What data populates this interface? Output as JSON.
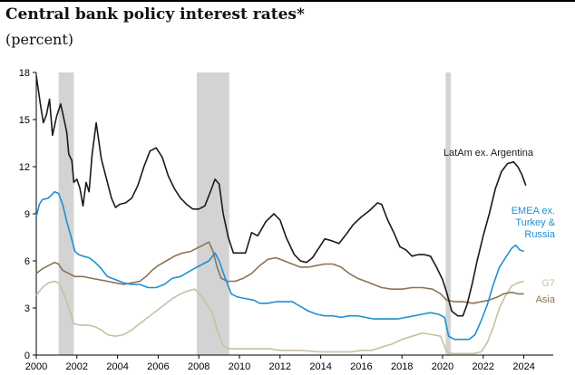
{
  "header": {
    "title": "Central bank policy interest rates*",
    "subtitle": "(percent)"
  },
  "chart_data": {
    "type": "line",
    "title": "Central bank policy interest rates*",
    "subtitle": "(percent)",
    "xlabel": "",
    "ylabel": "",
    "xlim": [
      2000,
      2024.2
    ],
    "ylim": [
      0,
      18
    ],
    "x_ticks": [
      "2000",
      "2002",
      "2004",
      "2006",
      "2008",
      "2010",
      "2012",
      "2014",
      "2016",
      "2018",
      "2020",
      "2022",
      "2024"
    ],
    "y_ticks": [
      "0",
      "3",
      "6",
      "9",
      "12",
      "15",
      "18"
    ],
    "grid": false,
    "shaded_periods": [
      [
        2001.1,
        2001.85
      ],
      [
        2007.9,
        2009.5
      ],
      [
        2020.15,
        2020.4
      ]
    ],
    "series": [
      {
        "name": "LatAm ex. Argentina",
        "label_lines": [
          "LatAm ex. Argentina"
        ],
        "color": "#1a1a1a",
        "points": [
          [
            2000,
            17.8
          ],
          [
            2000.2,
            16.0
          ],
          [
            2000.35,
            14.8
          ],
          [
            2000.5,
            15.3
          ],
          [
            2000.65,
            16.3
          ],
          [
            2000.8,
            14.0
          ],
          [
            2001.0,
            15.2
          ],
          [
            2001.2,
            16.0
          ],
          [
            2001.4,
            14.8
          ],
          [
            2001.5,
            14.2
          ],
          [
            2001.6,
            12.8
          ],
          [
            2001.75,
            12.4
          ],
          [
            2001.85,
            11.0
          ],
          [
            2002.0,
            11.2
          ],
          [
            2002.15,
            10.6
          ],
          [
            2002.3,
            9.5
          ],
          [
            2002.45,
            11.0
          ],
          [
            2002.6,
            10.4
          ],
          [
            2002.75,
            12.8
          ],
          [
            2002.95,
            14.8
          ],
          [
            2003.2,
            12.5
          ],
          [
            2003.5,
            11.0
          ],
          [
            2003.7,
            10.0
          ],
          [
            2003.9,
            9.4
          ],
          [
            2004.1,
            9.6
          ],
          [
            2004.4,
            9.7
          ],
          [
            2004.7,
            10.0
          ],
          [
            2005.0,
            10.8
          ],
          [
            2005.3,
            12.0
          ],
          [
            2005.6,
            13.0
          ],
          [
            2005.9,
            13.2
          ],
          [
            2006.2,
            12.6
          ],
          [
            2006.5,
            11.4
          ],
          [
            2006.8,
            10.6
          ],
          [
            2007.1,
            10.0
          ],
          [
            2007.4,
            9.6
          ],
          [
            2007.7,
            9.3
          ],
          [
            2008.0,
            9.3
          ],
          [
            2008.3,
            9.5
          ],
          [
            2008.6,
            10.5
          ],
          [
            2008.8,
            11.2
          ],
          [
            2009.0,
            10.9
          ],
          [
            2009.2,
            9.0
          ],
          [
            2009.45,
            7.5
          ],
          [
            2009.7,
            6.5
          ],
          [
            2010.0,
            6.5
          ],
          [
            2010.3,
            6.5
          ],
          [
            2010.6,
            7.8
          ],
          [
            2010.9,
            7.6
          ],
          [
            2011.3,
            8.5
          ],
          [
            2011.7,
            9.0
          ],
          [
            2012.0,
            8.6
          ],
          [
            2012.3,
            7.5
          ],
          [
            2012.7,
            6.4
          ],
          [
            2013.0,
            6.0
          ],
          [
            2013.3,
            5.9
          ],
          [
            2013.6,
            6.2
          ],
          [
            2013.9,
            6.8
          ],
          [
            2014.2,
            7.4
          ],
          [
            2014.5,
            7.3
          ],
          [
            2014.9,
            7.1
          ],
          [
            2015.2,
            7.6
          ],
          [
            2015.6,
            8.3
          ],
          [
            2016.0,
            8.8
          ],
          [
            2016.4,
            9.2
          ],
          [
            2016.8,
            9.7
          ],
          [
            2017.0,
            9.6
          ],
          [
            2017.3,
            8.6
          ],
          [
            2017.6,
            7.8
          ],
          [
            2017.9,
            6.9
          ],
          [
            2018.2,
            6.7
          ],
          [
            2018.5,
            6.3
          ],
          [
            2018.8,
            6.4
          ],
          [
            2019.1,
            6.4
          ],
          [
            2019.4,
            6.3
          ],
          [
            2019.7,
            5.6
          ],
          [
            2020.0,
            4.8
          ],
          [
            2020.2,
            4.0
          ],
          [
            2020.45,
            2.8
          ],
          [
            2020.75,
            2.5
          ],
          [
            2021.0,
            2.5
          ],
          [
            2021.2,
            3.2
          ],
          [
            2021.45,
            4.5
          ],
          [
            2021.7,
            6.0
          ],
          [
            2022.0,
            7.6
          ],
          [
            2022.3,
            9.0
          ],
          [
            2022.6,
            10.6
          ],
          [
            2022.9,
            11.7
          ],
          [
            2023.2,
            12.2
          ],
          [
            2023.5,
            12.3
          ],
          [
            2023.7,
            12.0
          ],
          [
            2023.9,
            11.5
          ],
          [
            2024.1,
            10.8
          ]
        ]
      },
      {
        "name": "EMEA ex. Turkey & Russia",
        "label_lines": [
          "EMEA ex.",
          "Turkey &",
          "Russia"
        ],
        "color": "#1f8fd0",
        "points": [
          [
            2000,
            8.8
          ],
          [
            2000.15,
            9.6
          ],
          [
            2000.3,
            9.9
          ],
          [
            2000.6,
            10.0
          ],
          [
            2000.9,
            10.4
          ],
          [
            2001.1,
            10.3
          ],
          [
            2001.3,
            9.6
          ],
          [
            2001.5,
            8.5
          ],
          [
            2001.7,
            7.6
          ],
          [
            2001.9,
            6.6
          ],
          [
            2002.1,
            6.4
          ],
          [
            2002.3,
            6.3
          ],
          [
            2002.6,
            6.2
          ],
          [
            2002.9,
            5.9
          ],
          [
            2003.2,
            5.5
          ],
          [
            2003.5,
            5.0
          ],
          [
            2003.9,
            4.8
          ],
          [
            2004.3,
            4.6
          ],
          [
            2004.7,
            4.5
          ],
          [
            2005.1,
            4.5
          ],
          [
            2005.5,
            4.3
          ],
          [
            2005.9,
            4.3
          ],
          [
            2006.3,
            4.5
          ],
          [
            2006.7,
            4.9
          ],
          [
            2007.1,
            5.0
          ],
          [
            2007.5,
            5.3
          ],
          [
            2007.9,
            5.6
          ],
          [
            2008.2,
            5.8
          ],
          [
            2008.5,
            6.0
          ],
          [
            2008.8,
            6.5
          ],
          [
            2009.0,
            6.0
          ],
          [
            2009.3,
            4.9
          ],
          [
            2009.6,
            3.9
          ],
          [
            2009.9,
            3.7
          ],
          [
            2010.3,
            3.6
          ],
          [
            2010.7,
            3.5
          ],
          [
            2011.0,
            3.3
          ],
          [
            2011.4,
            3.3
          ],
          [
            2011.8,
            3.4
          ],
          [
            2012.2,
            3.4
          ],
          [
            2012.6,
            3.4
          ],
          [
            2013.0,
            3.1
          ],
          [
            2013.4,
            2.8
          ],
          [
            2013.8,
            2.6
          ],
          [
            2014.2,
            2.5
          ],
          [
            2014.6,
            2.5
          ],
          [
            2015.0,
            2.4
          ],
          [
            2015.4,
            2.5
          ],
          [
            2015.8,
            2.5
          ],
          [
            2016.2,
            2.4
          ],
          [
            2016.6,
            2.3
          ],
          [
            2017.0,
            2.3
          ],
          [
            2017.4,
            2.3
          ],
          [
            2017.8,
            2.3
          ],
          [
            2018.2,
            2.4
          ],
          [
            2018.6,
            2.5
          ],
          [
            2019.0,
            2.6
          ],
          [
            2019.4,
            2.7
          ],
          [
            2019.8,
            2.6
          ],
          [
            2020.1,
            2.4
          ],
          [
            2020.3,
            1.2
          ],
          [
            2020.6,
            1.0
          ],
          [
            2021.0,
            1.0
          ],
          [
            2021.3,
            1.0
          ],
          [
            2021.6,
            1.3
          ],
          [
            2021.9,
            2.2
          ],
          [
            2022.2,
            3.2
          ],
          [
            2022.5,
            4.5
          ],
          [
            2022.8,
            5.6
          ],
          [
            2023.1,
            6.2
          ],
          [
            2023.4,
            6.8
          ],
          [
            2023.6,
            7.0
          ],
          [
            2023.8,
            6.7
          ],
          [
            2024.0,
            6.6
          ]
        ]
      },
      {
        "name": "G7",
        "label_lines": [
          "G7"
        ],
        "color": "#c9bfa3",
        "points": [
          [
            2000,
            3.8
          ],
          [
            2000.3,
            4.3
          ],
          [
            2000.6,
            4.6
          ],
          [
            2000.9,
            4.7
          ],
          [
            2001.1,
            4.6
          ],
          [
            2001.4,
            3.8
          ],
          [
            2001.6,
            3.0
          ],
          [
            2001.85,
            2.0
          ],
          [
            2002.2,
            1.9
          ],
          [
            2002.6,
            1.9
          ],
          [
            2002.9,
            1.8
          ],
          [
            2003.2,
            1.6
          ],
          [
            2003.5,
            1.3
          ],
          [
            2003.9,
            1.2
          ],
          [
            2004.3,
            1.3
          ],
          [
            2004.7,
            1.6
          ],
          [
            2005.1,
            2.0
          ],
          [
            2005.5,
            2.4
          ],
          [
            2005.9,
            2.8
          ],
          [
            2006.3,
            3.2
          ],
          [
            2006.7,
            3.6
          ],
          [
            2007.1,
            3.9
          ],
          [
            2007.5,
            4.1
          ],
          [
            2007.8,
            4.2
          ],
          [
            2008.1,
            3.8
          ],
          [
            2008.4,
            3.2
          ],
          [
            2008.7,
            2.6
          ],
          [
            2008.9,
            1.6
          ],
          [
            2009.2,
            0.6
          ],
          [
            2009.5,
            0.4
          ],
          [
            2010.0,
            0.4
          ],
          [
            2010.5,
            0.4
          ],
          [
            2011.0,
            0.4
          ],
          [
            2011.5,
            0.4
          ],
          [
            2012.0,
            0.3
          ],
          [
            2013.0,
            0.3
          ],
          [
            2014.0,
            0.2
          ],
          [
            2015.0,
            0.2
          ],
          [
            2015.5,
            0.2
          ],
          [
            2016.0,
            0.3
          ],
          [
            2016.5,
            0.3
          ],
          [
            2017.0,
            0.5
          ],
          [
            2017.5,
            0.7
          ],
          [
            2018.0,
            1.0
          ],
          [
            2018.5,
            1.2
          ],
          [
            2019.0,
            1.4
          ],
          [
            2019.5,
            1.3
          ],
          [
            2019.9,
            1.2
          ],
          [
            2020.2,
            0.2
          ],
          [
            2020.5,
            0.1
          ],
          [
            2021.0,
            0.1
          ],
          [
            2021.5,
            0.1
          ],
          [
            2021.9,
            0.2
          ],
          [
            2022.2,
            0.8
          ],
          [
            2022.5,
            1.8
          ],
          [
            2022.8,
            3.0
          ],
          [
            2023.1,
            3.8
          ],
          [
            2023.4,
            4.4
          ],
          [
            2023.7,
            4.6
          ],
          [
            2024.0,
            4.7
          ]
        ]
      },
      {
        "name": "Asia",
        "label_lines": [
          "Asia"
        ],
        "color": "#8b7355",
        "points": [
          [
            2000,
            5.2
          ],
          [
            2000.3,
            5.5
          ],
          [
            2000.6,
            5.7
          ],
          [
            2000.9,
            5.9
          ],
          [
            2001.1,
            5.8
          ],
          [
            2001.3,
            5.4
          ],
          [
            2001.6,
            5.2
          ],
          [
            2001.9,
            5.0
          ],
          [
            2002.3,
            5.0
          ],
          [
            2002.7,
            4.9
          ],
          [
            2003.1,
            4.8
          ],
          [
            2003.5,
            4.7
          ],
          [
            2003.9,
            4.6
          ],
          [
            2004.3,
            4.5
          ],
          [
            2004.7,
            4.6
          ],
          [
            2005.1,
            4.7
          ],
          [
            2005.4,
            5.0
          ],
          [
            2005.7,
            5.4
          ],
          [
            2006.0,
            5.7
          ],
          [
            2006.4,
            6.0
          ],
          [
            2006.8,
            6.3
          ],
          [
            2007.2,
            6.5
          ],
          [
            2007.6,
            6.6
          ],
          [
            2007.9,
            6.8
          ],
          [
            2008.2,
            7.0
          ],
          [
            2008.5,
            7.2
          ],
          [
            2008.7,
            6.6
          ],
          [
            2008.9,
            5.6
          ],
          [
            2009.1,
            4.9
          ],
          [
            2009.4,
            4.7
          ],
          [
            2009.8,
            4.7
          ],
          [
            2010.2,
            4.9
          ],
          [
            2010.6,
            5.2
          ],
          [
            2011.0,
            5.7
          ],
          [
            2011.4,
            6.1
          ],
          [
            2011.8,
            6.2
          ],
          [
            2012.2,
            6.0
          ],
          [
            2012.6,
            5.8
          ],
          [
            2013.0,
            5.6
          ],
          [
            2013.4,
            5.6
          ],
          [
            2013.8,
            5.7
          ],
          [
            2014.2,
            5.8
          ],
          [
            2014.6,
            5.8
          ],
          [
            2015.0,
            5.6
          ],
          [
            2015.4,
            5.2
          ],
          [
            2015.8,
            4.9
          ],
          [
            2016.2,
            4.7
          ],
          [
            2016.6,
            4.5
          ],
          [
            2017.0,
            4.3
          ],
          [
            2017.5,
            4.2
          ],
          [
            2018.0,
            4.2
          ],
          [
            2018.5,
            4.3
          ],
          [
            2019.0,
            4.3
          ],
          [
            2019.5,
            4.2
          ],
          [
            2019.9,
            3.9
          ],
          [
            2020.2,
            3.5
          ],
          [
            2020.6,
            3.4
          ],
          [
            2021.0,
            3.4
          ],
          [
            2021.5,
            3.3
          ],
          [
            2021.9,
            3.4
          ],
          [
            2022.3,
            3.5
          ],
          [
            2022.7,
            3.7
          ],
          [
            2023.0,
            3.9
          ],
          [
            2023.4,
            4.0
          ],
          [
            2023.7,
            3.9
          ],
          [
            2024.0,
            3.9
          ]
        ]
      }
    ]
  }
}
